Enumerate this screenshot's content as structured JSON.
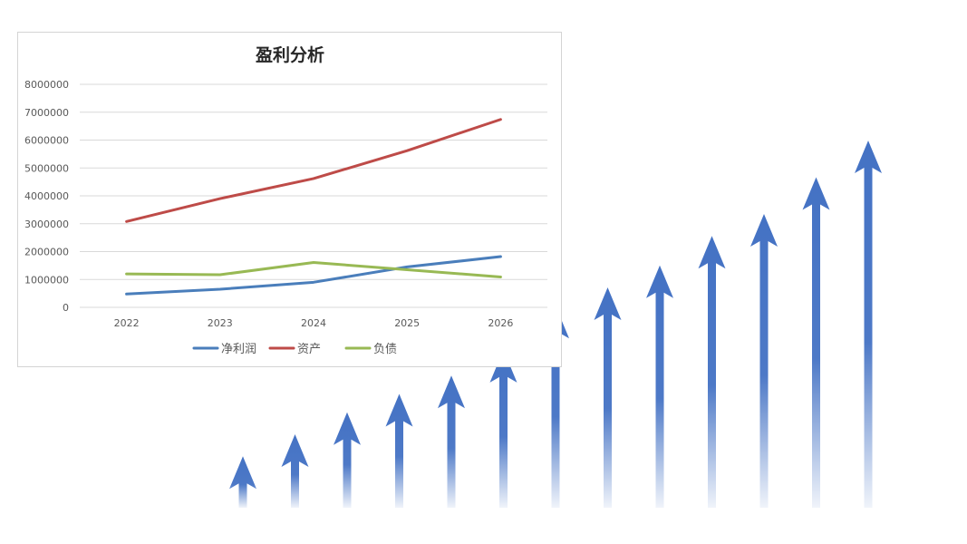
{
  "chart_data": {
    "type": "line",
    "title": "盈利分析",
    "categories": [
      "2022",
      "2023",
      "2024",
      "2025",
      "2026"
    ],
    "ylim": [
      0,
      8000000
    ],
    "yticks": [
      0,
      1000000,
      2000000,
      3000000,
      4000000,
      5000000,
      6000000,
      7000000,
      8000000
    ],
    "grid": true,
    "legend_position": "bottom",
    "series": [
      {
        "name": "净利润",
        "color": "#4a7ebb",
        "values": [
          480000,
          650000,
          900000,
          1450000,
          1820000
        ]
      },
      {
        "name": "资产",
        "color": "#be4b48",
        "values": [
          3080000,
          3900000,
          4620000,
          5620000,
          6740000
        ]
      },
      {
        "name": "负债",
        "color": "#98b954",
        "values": [
          1200000,
          1170000,
          1610000,
          1350000,
          1090000
        ]
      }
    ]
  },
  "decoration": {
    "arrow_color": "#4472c4",
    "arrow_count": 13,
    "arrow_levels": [
      0.14,
      0.2,
      0.26,
      0.31,
      0.36,
      0.43,
      0.55,
      0.6,
      0.66,
      0.74,
      0.8,
      0.9,
      1.0
    ]
  }
}
